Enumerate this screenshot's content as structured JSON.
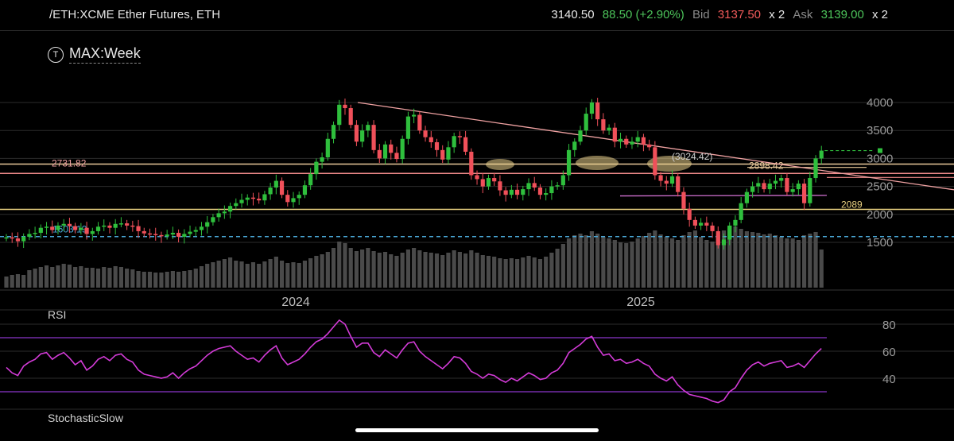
{
  "header": {
    "symbol": "/ETH:XCME Ether Futures, ETH",
    "last": "3140.50",
    "change": "88.50 (+2.90%)",
    "bid_label": "Bid",
    "bid_value": "3137.50",
    "bid_size": "x 2",
    "ask_label": "Ask",
    "ask_value": "3139.00",
    "ask_size": "x 2"
  },
  "interval": {
    "icon": "t-icon",
    "label": "MAX:Week"
  },
  "rsi_label": "RSI",
  "stoch_label": "StochasticSlow",
  "colors": {
    "up": "#2fbf3d",
    "down": "#f0505a",
    "rsi": "#d33bd7",
    "rsi_band": "#8b35c9",
    "trend": "#f0a2a2"
  },
  "chart_data": [
    {
      "type": "candlestick",
      "ylim": [
        1000,
        4300
      ],
      "yticks": [
        "4000",
        "3500",
        "3000",
        "2500",
        "2000",
        "1500"
      ],
      "yticks_values": [
        4000,
        3500,
        3000,
        2500,
        2000,
        1500
      ],
      "xtick_labels": [
        "2024",
        "2025"
      ],
      "levels": [
        {
          "value": 2731.82,
          "label": "2731.82",
          "color": "#f08a8a"
        },
        {
          "value": 2898.42,
          "label": "2898.42",
          "color": "#e8c89a"
        },
        {
          "value": 2089,
          "label": "2089",
          "color": "#e8d080"
        },
        {
          "value": 1603,
          "label": "1603.19",
          "color": "#4aa8d8"
        }
      ],
      "annotations": [
        {
          "text": "(3024.42)"
        }
      ],
      "closes": [
        1590,
        1570,
        1520,
        1600,
        1650,
        1670,
        1760,
        1780,
        1720,
        1800,
        1830,
        1790,
        1720,
        1760,
        1650,
        1700,
        1780,
        1800,
        1760,
        1830,
        1840,
        1800,
        1790,
        1700,
        1660,
        1650,
        1630,
        1610,
        1640,
        1670,
        1600,
        1650,
        1690,
        1720,
        1780,
        1860,
        1950,
        2020,
        2050,
        2150,
        2200,
        2260,
        2300,
        2280,
        2250,
        2360,
        2480,
        2600,
        2350,
        2220,
        2290,
        2350,
        2520,
        2720,
        2940,
        3020,
        3350,
        3600,
        3960,
        3900,
        3600,
        3300,
        3500,
        3600,
        3150,
        3000,
        3250,
        3100,
        2990,
        3350,
        3750,
        3780,
        3500,
        3380,
        3290,
        3150,
        2980,
        3200,
        3400,
        3380,
        3120,
        2700,
        2630,
        2500,
        2650,
        2590,
        2430,
        2350,
        2440,
        2350,
        2450,
        2560,
        2480,
        2350,
        2380,
        2500,
        2520,
        2700,
        3150,
        3300,
        3500,
        3800,
        4000,
        3700,
        3500,
        3550,
        3300,
        3350,
        3250,
        3300,
        3380,
        3250,
        3200,
        2700,
        2600,
        2550,
        2680,
        2400,
        2100,
        1900,
        1800,
        1850,
        1800,
        1700,
        1450,
        1550,
        1800,
        1900,
        2200,
        2400,
        2500,
        2560,
        2450,
        2550,
        2600,
        2650,
        2400,
        2450,
        2550,
        2200,
        2650,
        3000,
        3140
      ],
      "volumes": [
        0.14,
        0.16,
        0.17,
        0.16,
        0.22,
        0.24,
        0.26,
        0.28,
        0.26,
        0.28,
        0.3,
        0.29,
        0.26,
        0.27,
        0.25,
        0.25,
        0.24,
        0.26,
        0.25,
        0.27,
        0.26,
        0.24,
        0.23,
        0.21,
        0.2,
        0.2,
        0.19,
        0.19,
        0.2,
        0.21,
        0.2,
        0.21,
        0.22,
        0.24,
        0.27,
        0.3,
        0.32,
        0.34,
        0.36,
        0.38,
        0.34,
        0.33,
        0.3,
        0.32,
        0.3,
        0.33,
        0.36,
        0.39,
        0.34,
        0.31,
        0.32,
        0.31,
        0.34,
        0.37,
        0.4,
        0.42,
        0.45,
        0.5,
        0.58,
        0.56,
        0.5,
        0.46,
        0.48,
        0.5,
        0.46,
        0.44,
        0.45,
        0.42,
        0.4,
        0.44,
        0.48,
        0.5,
        0.47,
        0.45,
        0.44,
        0.43,
        0.41,
        0.44,
        0.47,
        0.45,
        0.43,
        0.47,
        0.44,
        0.41,
        0.4,
        0.39,
        0.37,
        0.36,
        0.37,
        0.36,
        0.38,
        0.4,
        0.38,
        0.36,
        0.39,
        0.44,
        0.49,
        0.55,
        0.62,
        0.66,
        0.68,
        0.66,
        0.71,
        0.68,
        0.64,
        0.62,
        0.6,
        0.57,
        0.56,
        0.58,
        0.62,
        0.65,
        0.69,
        0.72,
        0.67,
        0.64,
        0.62,
        0.6,
        0.66,
        0.7,
        0.72,
        0.64,
        0.6,
        0.58,
        0.66,
        0.72,
        0.78,
        0.77,
        0.74,
        0.71,
        0.7,
        0.69,
        0.67,
        0.68,
        0.66,
        0.64,
        0.62,
        0.62,
        0.6,
        0.66,
        0.68,
        0.7,
        0.48
      ],
      "rsi": {
        "ylim": [
          20,
          86
        ],
        "yticks": [
          "80",
          "60",
          "40"
        ],
        "yticks_values": [
          80,
          60,
          40
        ],
        "bands": [
          70,
          30
        ],
        "values": [
          48,
          44,
          42,
          49,
          52,
          54,
          58,
          59,
          54,
          57,
          59,
          55,
          50,
          53,
          46,
          49,
          54,
          56,
          53,
          57,
          58,
          54,
          52,
          46,
          43,
          42,
          41,
          40,
          41,
          44,
          40,
          44,
          47,
          49,
          53,
          57,
          60,
          62,
          63,
          64,
          60,
          57,
          54,
          55,
          52,
          57,
          61,
          64,
          55,
          50,
          52,
          54,
          58,
          63,
          67,
          69,
          73,
          78,
          83,
          80,
          71,
          63,
          66,
          66,
          59,
          56,
          61,
          58,
          55,
          61,
          66,
          67,
          60,
          56,
          53,
          50,
          47,
          51,
          56,
          55,
          51,
          45,
          43,
          40,
          43,
          42,
          39,
          37,
          40,
          38,
          41,
          44,
          42,
          39,
          40,
          44,
          46,
          51,
          59,
          62,
          65,
          69,
          71,
          63,
          57,
          58,
          53,
          54,
          51,
          52,
          54,
          51,
          49,
          43,
          40,
          38,
          41,
          35,
          31,
          28,
          27,
          26,
          25,
          23,
          22,
          24,
          30,
          33,
          40,
          46,
          50,
          52,
          49,
          51,
          52,
          53,
          48,
          49,
          51,
          48,
          53,
          58,
          62
        ]
      }
    }
  ]
}
